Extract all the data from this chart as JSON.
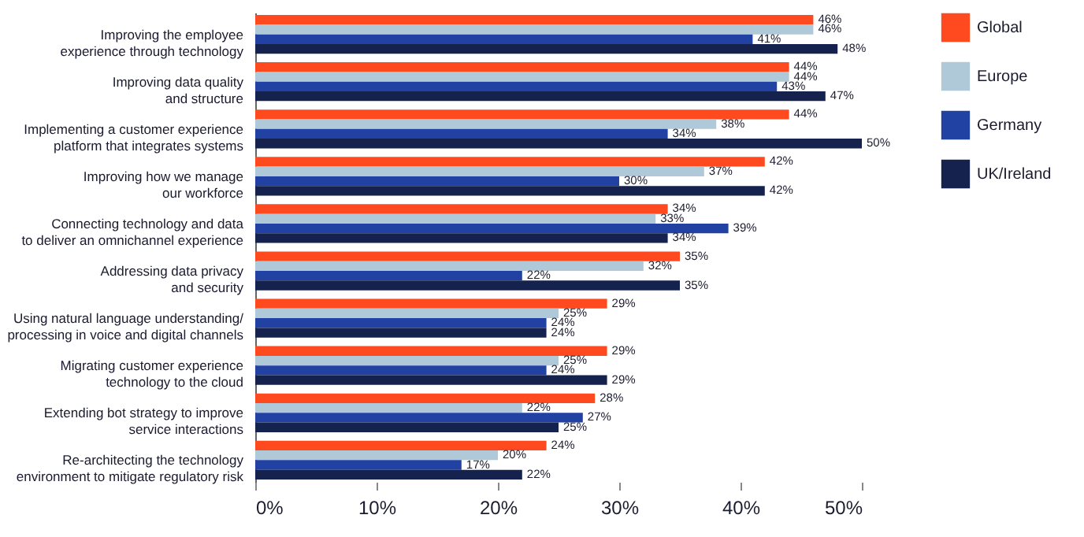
{
  "chart_data": {
    "type": "bar",
    "orientation": "horizontal",
    "categories": [
      "Improving the employee\nexperience through technology",
      "Improving data quality\nand structure",
      "Implementing a customer experience\nplatform that integrates systems",
      "Improving how we manage\nour workforce",
      "Connecting technology and data\nto deliver an omnichannel experience",
      "Addressing data privacy\nand security",
      "Using natural language understanding/\nprocessing in voice and digital channels",
      "Migrating customer experience\ntechnology to the cloud",
      "Extending bot strategy to improve\nservice interactions",
      "Re-architecting the technology\nenvironment to mitigate regulatory risk"
    ],
    "series": [
      {
        "name": "Global",
        "color": "#fe4a1e",
        "values": [
          46,
          44,
          44,
          42,
          34,
          35,
          29,
          29,
          28,
          24
        ],
        "value_labels": [
          "46%",
          "44%",
          "44%",
          "42%",
          "34%",
          "35%",
          "29%",
          "29%",
          "28%",
          "24%"
        ]
      },
      {
        "name": "Europe",
        "color": "#b0c9d9",
        "values": [
          46,
          44,
          38,
          37,
          33,
          32,
          25,
          25,
          22,
          20
        ],
        "value_labels": [
          "46%",
          "44%",
          "38%",
          "37%",
          "33%",
          "32%",
          "25%",
          "25%",
          "22%",
          "20%"
        ]
      },
      {
        "name": "Germany",
        "color": "#2141a3",
        "values": [
          41,
          43,
          34,
          30,
          39,
          22,
          24,
          24,
          27,
          17
        ],
        "value_labels": [
          "41%",
          "43%",
          "34%",
          "30%",
          "39%",
          "22%",
          "24%",
          "24%",
          "27%",
          "17%"
        ]
      },
      {
        "name": "UK/Ireland",
        "color": "#15224e",
        "values": [
          48,
          47,
          50,
          42,
          34,
          35,
          24,
          29,
          25,
          22
        ],
        "value_labels": [
          "48%",
          "47%",
          "50%",
          "42%",
          "34%",
          "35%",
          "24%",
          "29%",
          "25%",
          "22%"
        ]
      }
    ],
    "xlim": [
      0,
      50
    ],
    "xticks": [
      {
        "value": 0,
        "label": "0%"
      },
      {
        "value": 10,
        "label": "10%"
      },
      {
        "value": 20,
        "label": "20%"
      },
      {
        "value": 30,
        "label": "30%"
      },
      {
        "value": 40,
        "label": "40%"
      },
      {
        "value": 50,
        "label": "50%"
      }
    ],
    "grid": false,
    "legend": "top right"
  }
}
